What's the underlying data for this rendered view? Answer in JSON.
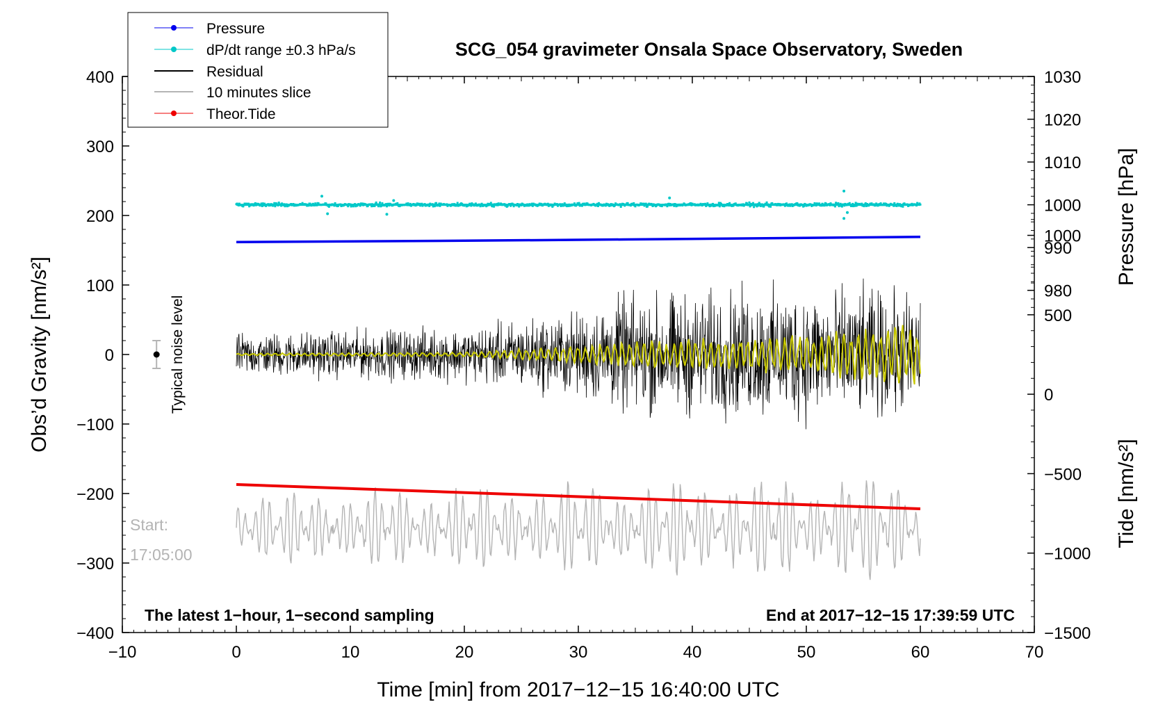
{
  "chart_data": {
    "type": "line",
    "title": "SCG_054 gravimeter Onsala Space Observatory, Sweden",
    "xlabel": "Time [min] from 2017−12−15 16:40:00 UTC",
    "ylabel": "Obs’d Gravity [nm/s²]",
    "y2label_pressure": "Pressure [hPa]",
    "y2label_tide": "Tide [nm/s²]",
    "xlim": [
      -10,
      70
    ],
    "ylim": [
      -400,
      400
    ],
    "pressure_lim": [
      900,
      1030
    ],
    "tide_lim": [
      -1500,
      2000
    ],
    "x_ticks": [
      "−10",
      "0",
      "10",
      "20",
      "30",
      "40",
      "50",
      "60",
      "70"
    ],
    "x_tick_values": [
      -10,
      0,
      10,
      20,
      30,
      40,
      50,
      60,
      70
    ],
    "y_ticks": [
      "400",
      "300",
      "200",
      "100",
      "0",
      "−100",
      "−200",
      "−300",
      "−400"
    ],
    "y_tick_values": [
      400,
      300,
      200,
      100,
      0,
      -100,
      -200,
      -300,
      -400
    ],
    "pressure_ticks": [
      "1030",
      "1020",
      "1010",
      "1000",
      "990",
      "980"
    ],
    "pressure_tick_values": [
      1030,
      1020,
      1010,
      1000,
      990,
      980
    ],
    "tide_ticks": [
      "1000",
      "500",
      "0",
      "−500",
      "−1000",
      "−1500"
    ],
    "tide_tick_values": [
      1000,
      500,
      0,
      -500,
      -1000,
      -1500
    ],
    "legend": [
      {
        "label": "Pressure",
        "color": "#0000ee",
        "marker": "dot"
      },
      {
        "label": "dP/dt range ±0.3 hPa/s",
        "color": "#00c8c8",
        "marker": "dot"
      },
      {
        "label": "Residual",
        "color": "#000000",
        "marker": "line"
      },
      {
        "label": "10 minutes slice",
        "color": "#b4b4b4",
        "marker": "line"
      },
      {
        "label": "Theor.Tide",
        "color": "#ee0000",
        "marker": "dot"
      }
    ],
    "noise_label": "Typical noise level",
    "noise_bar": {
      "x": -7,
      "y": 0,
      "err": 20
    },
    "start_label": "Start:",
    "start_time": "17:05:00",
    "bottom_left_note": "The latest 1−hour, 1−second sampling",
    "bottom_right_note": "End at 2017−12−15 17:39:59 UTC",
    "series": [
      {
        "name": "Pressure",
        "axis": "pressure",
        "color": "#0000ee",
        "x": [
          0,
          20,
          34,
          60
        ],
        "values": [
          991.3,
          991.6,
          991.9,
          992.5
        ]
      },
      {
        "name": "dP/dt range ±0.3 hPa/s",
        "axis": "pressure",
        "color": "#00c8c8",
        "center": 1000.0,
        "spread": 0.6,
        "outliers": [
          [
            7.5,
            1002
          ],
          [
            8.0,
            997.9
          ],
          [
            13.2,
            997.8
          ],
          [
            13.8,
            1001
          ],
          [
            38.0,
            1001.6
          ],
          [
            53.3,
            1003.2
          ],
          [
            53.3,
            996.8
          ],
          [
            53.6,
            998.2
          ]
        ]
      },
      {
        "name": "Residual",
        "axis": "gravity",
        "color": "#000000",
        "envelope": [
          [
            0,
            40
          ],
          [
            10,
            45
          ],
          [
            20,
            50
          ],
          [
            25,
            65
          ],
          [
            30,
            80
          ],
          [
            34,
            110
          ],
          [
            40,
            115
          ],
          [
            50,
            125
          ],
          [
            55,
            120
          ],
          [
            60,
            110
          ]
        ]
      },
      {
        "name": "Residual (smoothed)",
        "axis": "gravity",
        "color": "#c8c800",
        "envelope": [
          [
            0,
            2
          ],
          [
            20,
            4
          ],
          [
            25,
            10
          ],
          [
            30,
            15
          ],
          [
            35,
            25
          ],
          [
            45,
            30
          ],
          [
            55,
            45
          ],
          [
            58,
            60
          ],
          [
            60,
            55
          ]
        ]
      },
      {
        "name": "10 minutes slice",
        "axis": "gravity",
        "color": "#b4b4b4",
        "center": -250,
        "amplitude": 45,
        "x_range": [
          0,
          60
        ]
      },
      {
        "name": "Theor.Tide",
        "axis": "gravity",
        "color": "#ee0000",
        "x": [
          0,
          60
        ],
        "values": [
          -187,
          -222
        ]
      }
    ]
  }
}
